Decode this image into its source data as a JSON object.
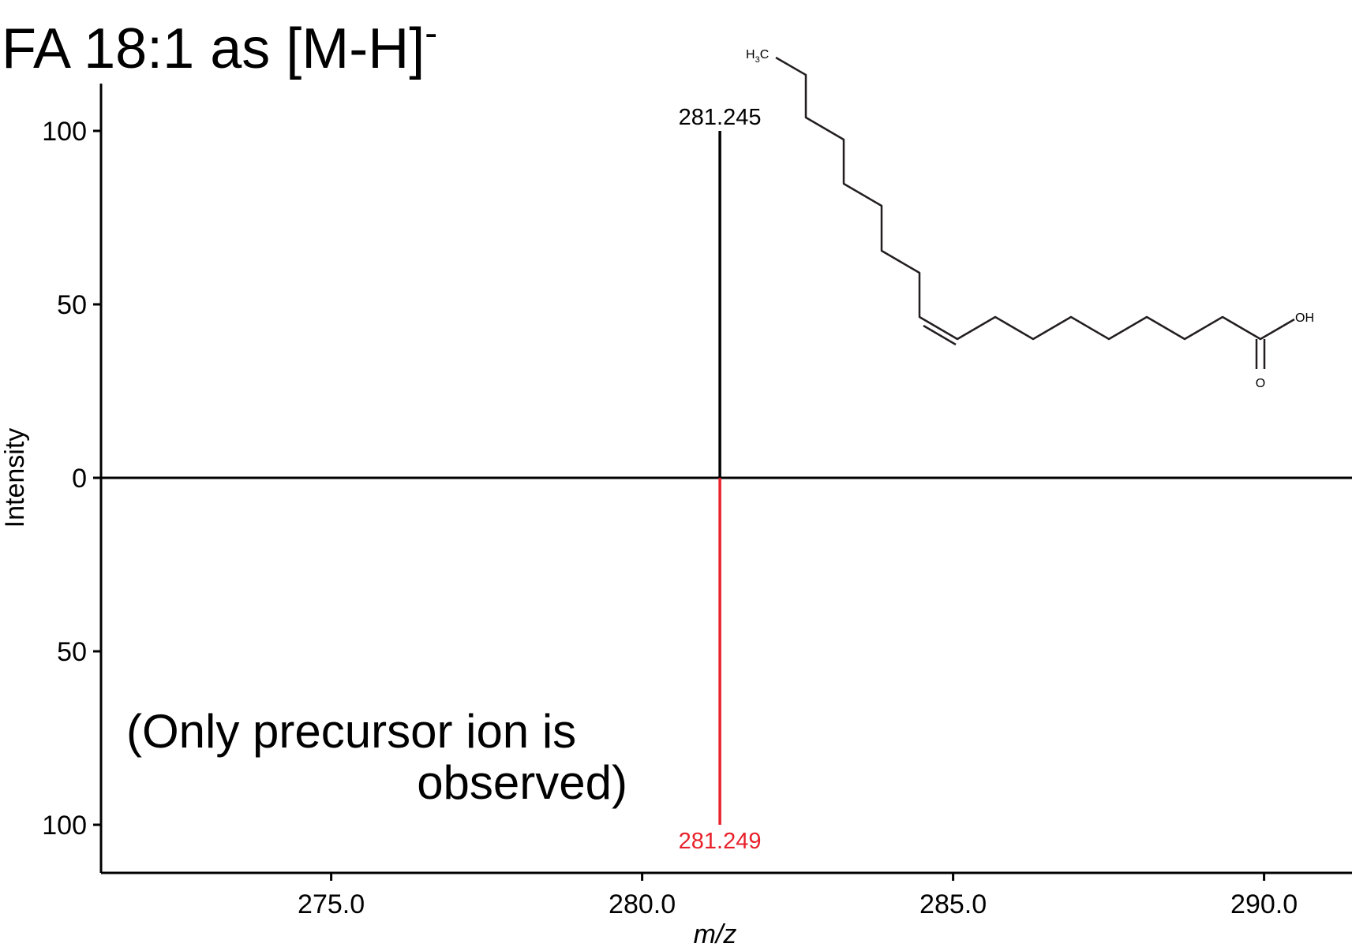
{
  "chart_data": {
    "type": "bar",
    "title": "FA 18:1 as [M-H]",
    "title_superscript": "-",
    "xlabel": "m/z",
    "ylabel": "Intensity",
    "xlim": [
      271.0,
      291.3
    ],
    "ylim": [
      -113,
      113
    ],
    "x_ticks": [
      275.0,
      280.0,
      285.0,
      290.0
    ],
    "x_tick_labels": [
      "275.0",
      "280.0",
      "285.0",
      "290.0"
    ],
    "y_ticks": [
      100,
      50,
      0,
      -50,
      -100
    ],
    "y_tick_labels": [
      "100",
      "50",
      "0",
      "50",
      "100"
    ],
    "grid": false,
    "series": [
      {
        "name": "",
        "color": "#000000",
        "direction": "up",
        "peaks": [
          {
            "mz": 281.245,
            "intensity": 100,
            "label": "281.245"
          }
        ]
      },
      {
        "name": "",
        "color": "#e8212b",
        "direction": "down",
        "peaks": [
          {
            "mz": 281.249,
            "intensity": 100,
            "label": "281.249"
          }
        ]
      }
    ],
    "annotation": {
      "lines": [
        "(Only precursor ion is",
        "observed)"
      ]
    },
    "structure": {
      "atom_labels": {
        "methyl_h": "H",
        "methyl_sub": "3",
        "methyl_c": "C",
        "hydroxyl": "OH",
        "carbonyl": "O"
      }
    }
  }
}
